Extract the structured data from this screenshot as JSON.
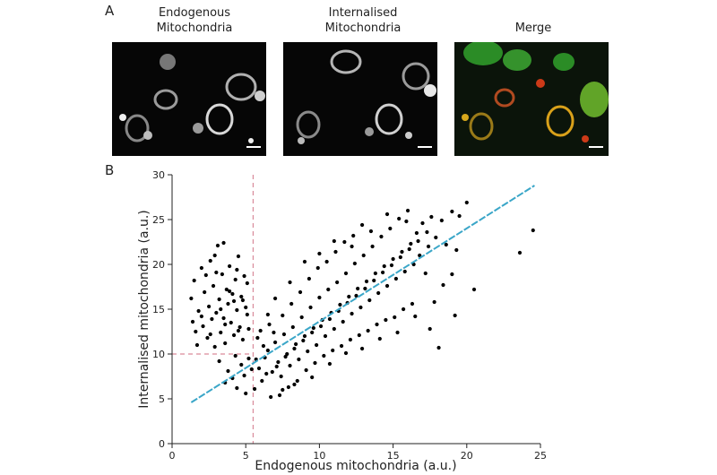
{
  "panel_a": {
    "letter": "A",
    "images": [
      {
        "title_line1": "Endogenous",
        "title_line2": "Mitochondria",
        "stain": "grayscale"
      },
      {
        "title_line1": "Internalised",
        "title_line2": "Mitochondria",
        "stain": "grayscale"
      },
      {
        "title_line1": "Merge",
        "title_line2": "",
        "stain": "green-red merge"
      }
    ]
  },
  "panel_b": {
    "letter": "B"
  },
  "colors": {
    "points": "#000000",
    "fit_line": "#3aa6c8",
    "threshold_lines": "#d98b9b"
  },
  "chart_data": {
    "type": "scatter",
    "xlabel": "Endogenous mitochondria (a.u.)",
    "ylabel": "Internalised mitochondria (a.u.)",
    "xlim": [
      0,
      25
    ],
    "ylim": [
      0,
      30
    ],
    "xticks": [
      0,
      5,
      10,
      15,
      20,
      25
    ],
    "yticks": [
      0,
      5,
      10,
      15,
      20,
      25,
      30
    ],
    "threshold_x": 5.5,
    "threshold_y": 10,
    "fit_line": {
      "x": [
        1.3,
        24.6
      ],
      "y": [
        4.6,
        28.8
      ]
    },
    "series": [
      {
        "points": [
          [
            1.3,
            16.2
          ],
          [
            1.5,
            18.2
          ],
          [
            1.6,
            12.5
          ],
          [
            1.8,
            14.8
          ],
          [
            2.0,
            19.6
          ],
          [
            2.1,
            13.1
          ],
          [
            2.2,
            16.9
          ],
          [
            2.4,
            11.8
          ],
          [
            2.5,
            15.3
          ],
          [
            2.6,
            20.4
          ],
          [
            2.7,
            13.9
          ],
          [
            2.8,
            17.6
          ],
          [
            2.9,
            10.8
          ],
          [
            3.0,
            14.6
          ],
          [
            3.1,
            22.1
          ],
          [
            3.2,
            16.1
          ],
          [
            3.3,
            12.4
          ],
          [
            3.4,
            18.9
          ],
          [
            3.5,
            14.0
          ],
          [
            3.6,
            11.2
          ],
          [
            3.7,
            17.2
          ],
          [
            3.8,
            15.6
          ],
          [
            3.9,
            19.8
          ],
          [
            4.0,
            13.5
          ],
          [
            4.1,
            16.7
          ],
          [
            4.2,
            12.1
          ],
          [
            4.3,
            18.3
          ],
          [
            4.4,
            14.9
          ],
          [
            4.5,
            20.9
          ],
          [
            4.6,
            13.0
          ],
          [
            4.7,
            16.4
          ],
          [
            4.8,
            11.6
          ],
          [
            4.9,
            18.7
          ],
          [
            5.0,
            15.2
          ],
          [
            5.1,
            17.9
          ],
          [
            5.2,
            12.8
          ],
          [
            1.4,
            13.6
          ],
          [
            1.7,
            11.0
          ],
          [
            2.3,
            18.8
          ],
          [
            2.6,
            12.2
          ],
          [
            3.0,
            19.1
          ],
          [
            3.3,
            15.0
          ],
          [
            3.6,
            13.3
          ],
          [
            3.9,
            17.0
          ],
          [
            4.2,
            15.9
          ],
          [
            4.5,
            12.6
          ],
          [
            4.8,
            16.0
          ],
          [
            5.1,
            14.4
          ],
          [
            2.0,
            14.2
          ],
          [
            2.9,
            21.0
          ],
          [
            3.5,
            22.4
          ],
          [
            4.4,
            19.4
          ],
          [
            3.2,
            9.2
          ],
          [
            3.8,
            8.1
          ],
          [
            4.1,
            7.3
          ],
          [
            4.4,
            6.2
          ],
          [
            4.7,
            8.8
          ],
          [
            5.0,
            5.6
          ],
          [
            5.2,
            9.5
          ],
          [
            3.6,
            6.8
          ],
          [
            4.9,
            7.6
          ],
          [
            4.3,
            9.8
          ],
          [
            5.6,
            6.1
          ],
          [
            5.9,
            8.4
          ],
          [
            6.1,
            7.0
          ],
          [
            6.3,
            9.6
          ],
          [
            6.5,
            10.4
          ],
          [
            6.8,
            8.0
          ],
          [
            7.0,
            11.3
          ],
          [
            7.2,
            9.1
          ],
          [
            7.4,
            7.5
          ],
          [
            7.6,
            12.2
          ],
          [
            7.8,
            10.0
          ],
          [
            8.0,
            8.7
          ],
          [
            8.2,
            13.0
          ],
          [
            8.4,
            11.1
          ],
          [
            8.6,
            9.4
          ],
          [
            8.8,
            14.1
          ],
          [
            9.0,
            12.0
          ],
          [
            9.2,
            10.3
          ],
          [
            9.4,
            15.2
          ],
          [
            9.6,
            12.9
          ],
          [
            9.8,
            11.0
          ],
          [
            10.0,
            16.3
          ],
          [
            10.2,
            13.8
          ],
          [
            10.4,
            12.0
          ],
          [
            10.6,
            17.2
          ],
          [
            10.8,
            14.6
          ],
          [
            11.0,
            12.8
          ],
          [
            11.2,
            18.0
          ],
          [
            11.4,
            15.5
          ],
          [
            11.6,
            13.6
          ],
          [
            11.8,
            19.0
          ],
          [
            12.0,
            16.4
          ],
          [
            12.2,
            14.5
          ],
          [
            12.4,
            20.1
          ],
          [
            12.6,
            17.3
          ],
          [
            12.8,
            15.2
          ],
          [
            13.0,
            21.0
          ],
          [
            13.2,
            18.1
          ],
          [
            13.4,
            16.0
          ],
          [
            13.6,
            22.0
          ],
          [
            13.8,
            19.0
          ],
          [
            14.0,
            16.8
          ],
          [
            14.2,
            23.1
          ],
          [
            14.4,
            19.8
          ],
          [
            14.6,
            17.6
          ],
          [
            14.8,
            24.0
          ],
          [
            15.0,
            20.6
          ],
          [
            15.2,
            18.4
          ],
          [
            15.4,
            25.1
          ],
          [
            15.6,
            21.4
          ],
          [
            15.8,
            19.2
          ],
          [
            16.0,
            26.0
          ],
          [
            16.2,
            22.3
          ],
          [
            16.4,
            20.0
          ],
          [
            16.6,
            23.5
          ],
          [
            16.8,
            21.0
          ],
          [
            17.0,
            24.6
          ],
          [
            17.2,
            19.0
          ],
          [
            17.4,
            22.0
          ],
          [
            17.6,
            25.3
          ],
          [
            17.9,
            23.0
          ],
          [
            18.3,
            24.9
          ],
          [
            18.6,
            22.2
          ],
          [
            19.0,
            25.9
          ],
          [
            19.3,
            21.6
          ],
          [
            19.5,
            25.4
          ],
          [
            20.0,
            26.9
          ],
          [
            18.1,
            10.7
          ],
          [
            17.5,
            12.8
          ],
          [
            19.2,
            14.3
          ],
          [
            20.5,
            17.2
          ],
          [
            23.6,
            21.3
          ],
          [
            24.5,
            23.8
          ],
          [
            6.0,
            12.6
          ],
          [
            6.6,
            13.3
          ],
          [
            7.3,
            5.4
          ],
          [
            7.9,
            6.3
          ],
          [
            8.5,
            7.0
          ],
          [
            9.1,
            8.2
          ],
          [
            9.7,
            9.0
          ],
          [
            10.3,
            9.8
          ],
          [
            10.9,
            10.4
          ],
          [
            11.5,
            10.9
          ],
          [
            12.1,
            11.6
          ],
          [
            12.7,
            12.1
          ],
          [
            13.3,
            12.6
          ],
          [
            13.9,
            13.3
          ],
          [
            14.5,
            13.8
          ],
          [
            15.1,
            14.1
          ],
          [
            15.7,
            15.0
          ],
          [
            16.3,
            15.6
          ],
          [
            6.2,
            10.9
          ],
          [
            6.9,
            12.4
          ],
          [
            7.5,
            14.3
          ],
          [
            8.1,
            15.6
          ],
          [
            8.7,
            16.9
          ],
          [
            9.3,
            18.4
          ],
          [
            9.9,
            19.6
          ],
          [
            10.5,
            20.3
          ],
          [
            11.1,
            21.4
          ],
          [
            11.7,
            22.5
          ],
          [
            12.3,
            23.2
          ],
          [
            12.9,
            24.4
          ],
          [
            5.4,
            8.3
          ],
          [
            5.7,
            9.4
          ],
          [
            6.4,
            7.8
          ],
          [
            7.1,
            8.6
          ],
          [
            7.7,
            9.7
          ],
          [
            8.3,
            10.6
          ],
          [
            8.9,
            11.5
          ],
          [
            9.5,
            12.4
          ],
          [
            10.1,
            13.1
          ],
          [
            10.7,
            13.9
          ],
          [
            11.3,
            14.8
          ],
          [
            11.9,
            15.7
          ],
          [
            12.5,
            16.5
          ],
          [
            13.1,
            17.3
          ],
          [
            13.7,
            18.2
          ],
          [
            14.3,
            19.1
          ],
          [
            14.9,
            19.9
          ],
          [
            15.5,
            20.8
          ],
          [
            16.1,
            21.7
          ],
          [
            16.7,
            22.6
          ],
          [
            17.3,
            23.6
          ],
          [
            6.7,
            5.2
          ],
          [
            7.5,
            6.0
          ],
          [
            8.3,
            6.6
          ],
          [
            9.5,
            7.4
          ],
          [
            10.7,
            8.9
          ],
          [
            11.8,
            10.1
          ],
          [
            12.9,
            10.6
          ],
          [
            14.1,
            11.7
          ],
          [
            15.3,
            12.4
          ],
          [
            16.5,
            14.2
          ],
          [
            17.8,
            15.8
          ],
          [
            18.4,
            17.7
          ],
          [
            19.0,
            18.9
          ],
          [
            15.9,
            24.8
          ],
          [
            14.6,
            25.6
          ],
          [
            13.5,
            23.7
          ],
          [
            12.2,
            22.0
          ],
          [
            11.0,
            22.6
          ],
          [
            10.0,
            21.2
          ],
          [
            9.0,
            20.3
          ],
          [
            8.0,
            18.0
          ],
          [
            7.0,
            16.2
          ],
          [
            6.5,
            14.4
          ],
          [
            5.8,
            11.8
          ]
        ]
      }
    ]
  }
}
